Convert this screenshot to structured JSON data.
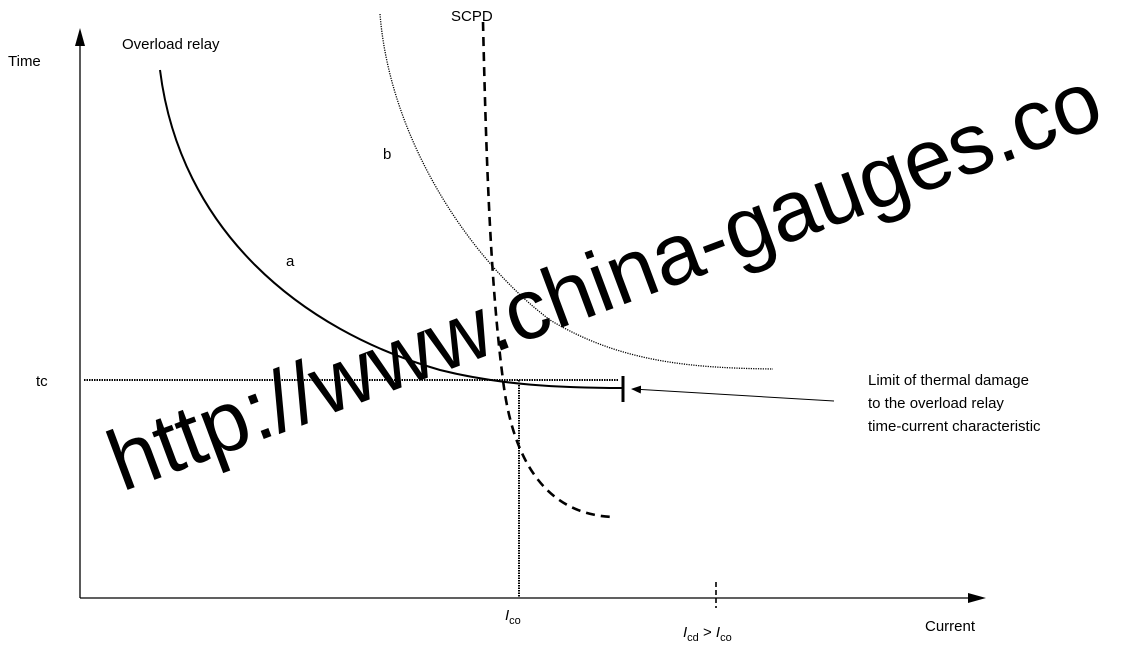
{
  "axes": {
    "y_label": "Time",
    "x_label": "Current"
  },
  "labels": {
    "overload_relay": "Overload relay",
    "scpd": "SCPD",
    "curve_a": "a",
    "curve_b": "b",
    "tc": "tc"
  },
  "ticks": {
    "ico_main": "I",
    "ico_sub": "co",
    "icd_main": "I",
    "icd_sub": "cd",
    "icd_gt": " > ",
    "icd_rhs_main": "I",
    "icd_rhs_sub": "co"
  },
  "annotation": {
    "line1": "Limit of thermal damage",
    "line2": "to the overload relay",
    "line3": "time-current characteristic"
  },
  "watermark": "http://www.china-gauges.co"
}
